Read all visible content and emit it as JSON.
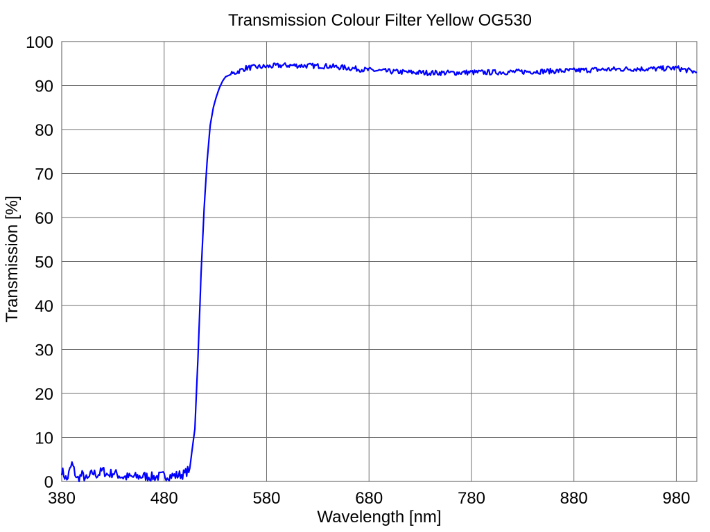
{
  "chart_data": {
    "type": "line",
    "title": "Transmission Colour Filter Yellow OG530",
    "xlabel": "Wavelength [nm]",
    "ylabel": "Transmission [%]",
    "xlim": [
      380,
      1000
    ],
    "ylim": [
      0,
      100
    ],
    "xticks": [
      380,
      480,
      580,
      680,
      780,
      880,
      980
    ],
    "yticks": [
      0,
      10,
      20,
      30,
      40,
      50,
      60,
      70,
      80,
      90,
      100
    ],
    "grid": true,
    "legend": null,
    "series": [
      {
        "name": "OG530",
        "color": "#0000ff",
        "x": [
          380,
          385,
          390,
          395,
          400,
          405,
          410,
          415,
          420,
          425,
          430,
          440,
          450,
          460,
          470,
          480,
          490,
          500,
          505,
          510,
          513,
          516,
          519,
          522,
          525,
          528,
          531,
          534,
          537,
          540,
          545,
          550,
          555,
          560,
          570,
          580,
          590,
          600,
          620,
          640,
          660,
          680,
          700,
          720,
          740,
          760,
          780,
          800,
          820,
          840,
          860,
          880,
          900,
          920,
          940,
          960,
          980,
          1000
        ],
        "y": [
          2.5,
          0.3,
          4,
          0.5,
          1.5,
          0.3,
          2,
          1.5,
          2.5,
          1.5,
          2,
          1,
          1,
          1.2,
          1,
          1.3,
          1.3,
          1.7,
          3,
          12,
          28,
          47,
          62,
          73,
          81,
          85,
          87.5,
          89.5,
          91,
          92,
          92.5,
          93,
          93.5,
          94,
          94.2,
          94.3,
          94.5,
          94.6,
          94.5,
          94.4,
          94,
          93.5,
          93.2,
          93,
          92.9,
          92.9,
          93,
          93,
          93.1,
          93.2,
          93.3,
          93.4,
          93.6,
          93.7,
          93.8,
          93.8,
          94,
          93
        ]
      }
    ]
  }
}
